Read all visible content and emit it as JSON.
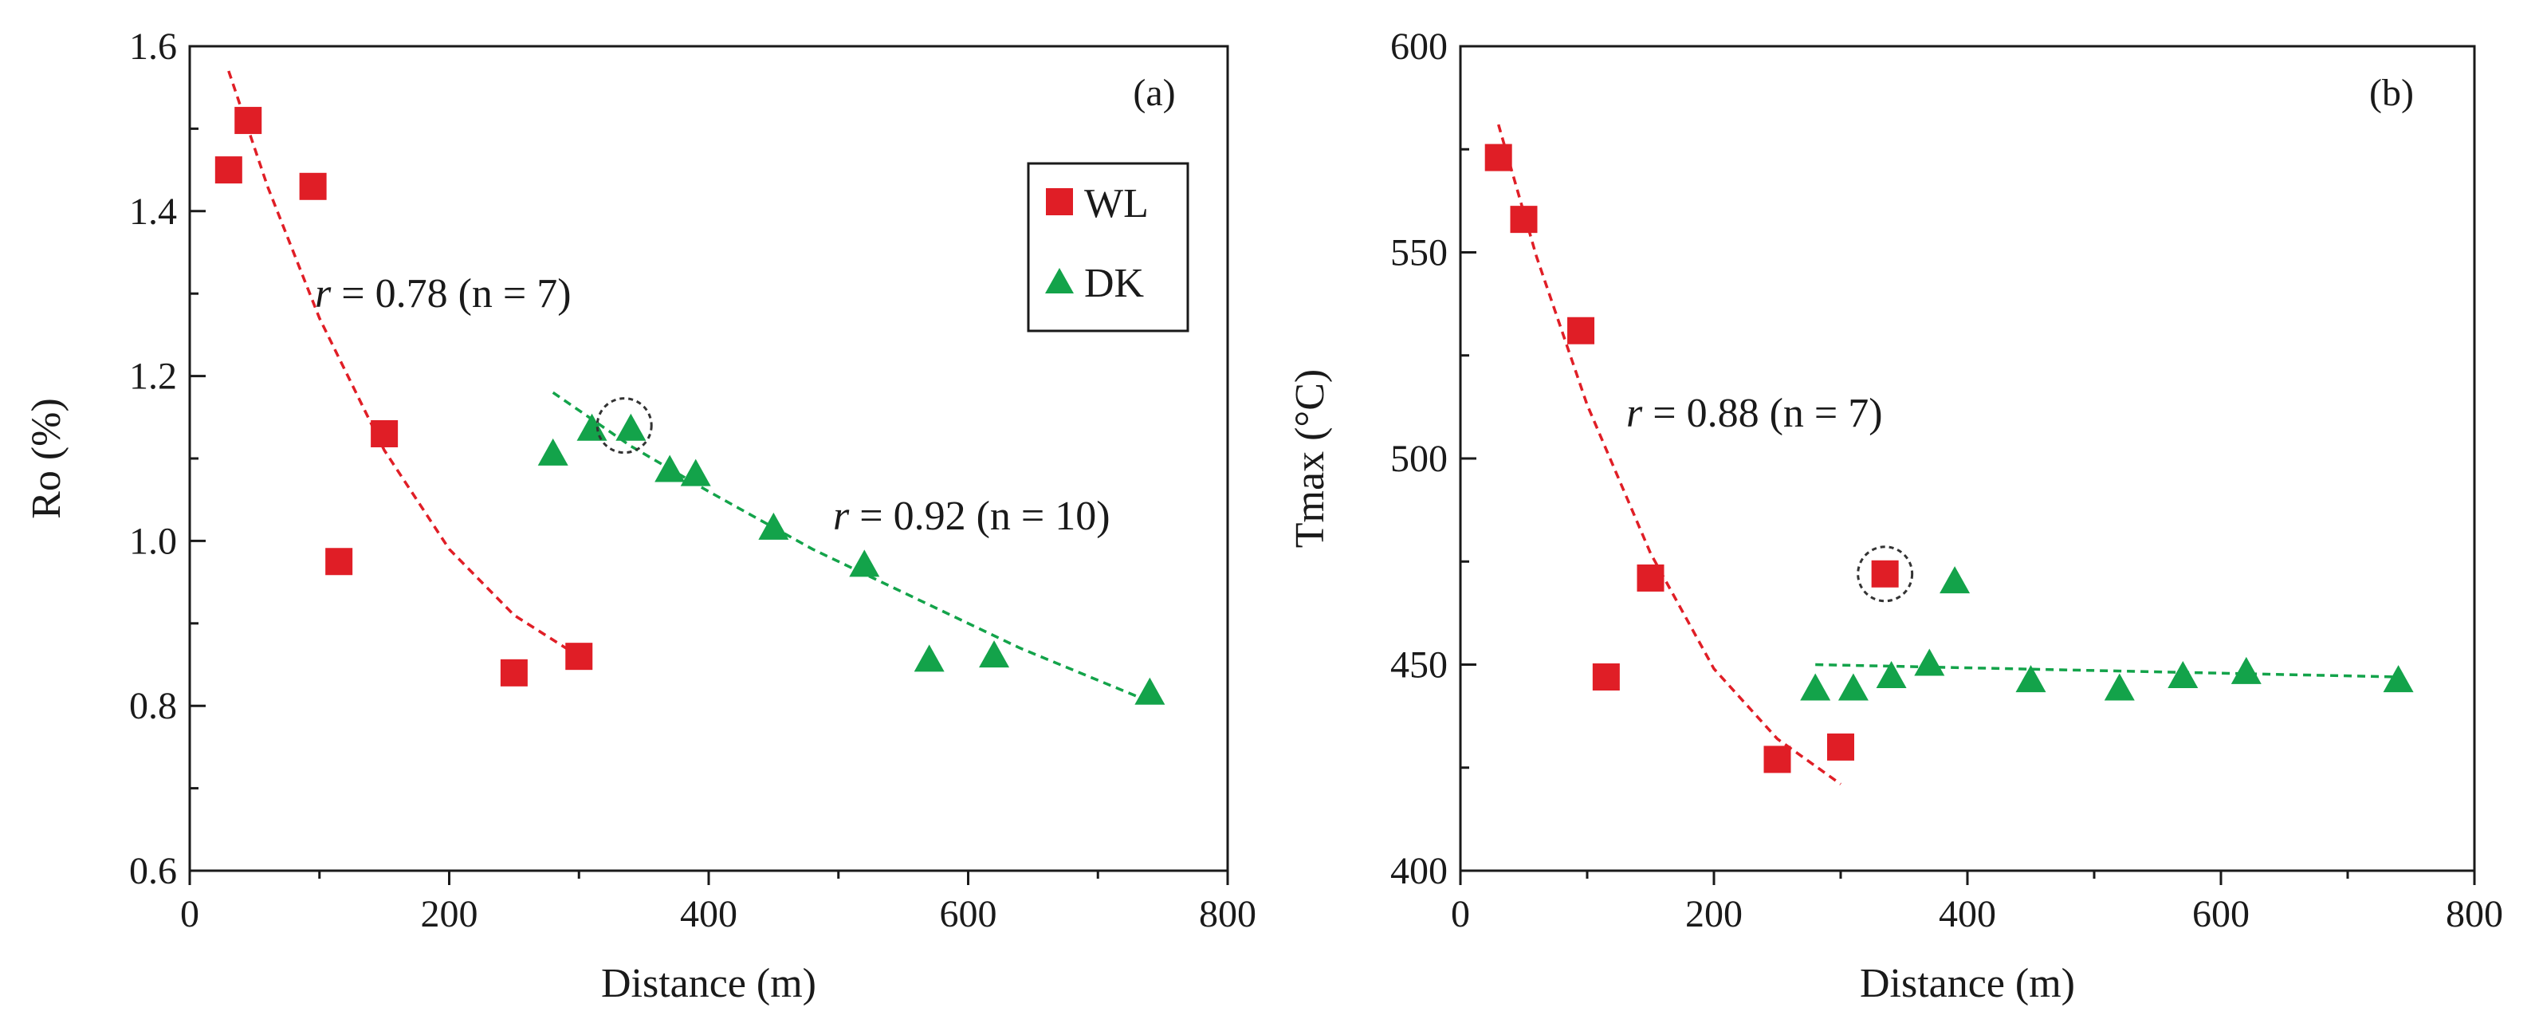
{
  "colors": {
    "wl": "#e01e26",
    "dk": "#13a34a",
    "axis": "#1a1a1a",
    "highlight_circle": "#333333"
  },
  "legend": {
    "items": [
      {
        "label": "WL",
        "marker": "square",
        "color": "#e01e26"
      },
      {
        "label": "DK",
        "marker": "triangle",
        "color": "#13a34a"
      }
    ],
    "placement": "top-right of panel (a)"
  },
  "chart_data": [
    {
      "panel": "(a)",
      "type": "scatter",
      "xlabel": "Distance (m)",
      "ylabel": "Ro (%)",
      "xlim": [
        0,
        800
      ],
      "ylim": [
        0.6,
        1.6
      ],
      "xticks": [
        0,
        200,
        400,
        600,
        800
      ],
      "yticks": [
        0.6,
        0.8,
        1.0,
        1.2,
        1.4,
        1.6
      ],
      "ytick_labels": [
        "0.6",
        "0.8",
        "1.0",
        "1.2",
        "1.4",
        "1.6"
      ],
      "grid": false,
      "series": [
        {
          "name": "WL",
          "marker": "square",
          "points": [
            [
              30,
              1.45
            ],
            [
              45,
              1.51
            ],
            [
              95,
              1.43
            ],
            [
              150,
              1.13
            ],
            [
              115,
              0.975
            ],
            [
              250,
              0.84
            ],
            [
              300,
              0.86
            ]
          ]
        },
        {
          "name": "DK",
          "marker": "triangle",
          "points": [
            [
              280,
              1.105
            ],
            [
              310,
              1.135
            ],
            [
              340,
              1.135
            ],
            [
              370,
              1.085
            ],
            [
              390,
              1.08
            ],
            [
              450,
              1.015
            ],
            [
              520,
              0.97
            ],
            [
              570,
              0.855
            ],
            [
              620,
              0.86
            ],
            [
              740,
              0.815
            ]
          ]
        }
      ],
      "fits": [
        {
          "series": "WL",
          "x_range": [
            30,
            300
          ],
          "samples": [
            [
              30,
              1.57
            ],
            [
              60,
              1.43
            ],
            [
              100,
              1.27
            ],
            [
              150,
              1.11
            ],
            [
              200,
              0.99
            ],
            [
              250,
              0.91
            ],
            [
              300,
              0.86
            ]
          ]
        },
        {
          "series": "DK",
          "x_range": [
            280,
            740
          ],
          "samples": [
            [
              280,
              1.18
            ],
            [
              340,
              1.115
            ],
            [
              400,
              1.06
            ],
            [
              480,
              0.99
            ],
            [
              560,
              0.93
            ],
            [
              640,
              0.87
            ],
            [
              740,
              0.805
            ]
          ]
        }
      ],
      "annotations": [
        {
          "r": "0.78",
          "rest": " (n = 7)"
        },
        {
          "r": "0.92",
          "rest": " (n = 10)"
        }
      ],
      "highlight": {
        "x": 335,
        "y": 1.14
      }
    },
    {
      "panel": "(b)",
      "type": "scatter",
      "xlabel": "Distance (m)",
      "ylabel": "Tmax (°C)",
      "xlim": [
        0,
        800
      ],
      "ylim": [
        400,
        600
      ],
      "xticks": [
        0,
        200,
        400,
        600,
        800
      ],
      "yticks": [
        400,
        450,
        500,
        550,
        600
      ],
      "ytick_labels": [
        "400",
        "450",
        "500",
        "550",
        "600"
      ],
      "grid": false,
      "series": [
        {
          "name": "WL",
          "marker": "square",
          "points": [
            [
              30,
              573
            ],
            [
              50,
              558
            ],
            [
              95,
              531
            ],
            [
              150,
              471
            ],
            [
              115,
              447
            ],
            [
              250,
              427
            ],
            [
              300,
              430
            ],
            [
              335,
              472
            ]
          ]
        },
        {
          "name": "DK",
          "marker": "triangle",
          "points": [
            [
              280,
              444
            ],
            [
              310,
              444
            ],
            [
              340,
              447
            ],
            [
              370,
              450
            ],
            [
              390,
              470
            ],
            [
              450,
              446
            ],
            [
              520,
              444
            ],
            [
              570,
              447
            ],
            [
              620,
              448
            ],
            [
              740,
              446
            ]
          ]
        }
      ],
      "fits": [
        {
          "series": "WL",
          "x_range": [
            30,
            300
          ],
          "samples": [
            [
              30,
              581
            ],
            [
              60,
              549
            ],
            [
              100,
              513
            ],
            [
              150,
              477
            ],
            [
              200,
              449
            ],
            [
              250,
              432
            ],
            [
              300,
              421
            ]
          ]
        },
        {
          "series": "DK",
          "x_range": [
            280,
            740
          ],
          "samples": [
            [
              280,
              450
            ],
            [
              740,
              447
            ]
          ]
        }
      ],
      "annotations": [
        {
          "r": "0.88",
          "rest": " (n = 7)"
        }
      ],
      "highlight": {
        "x": 335,
        "y": 472
      }
    }
  ],
  "r_symbol": "r",
  "r_equals": " = "
}
